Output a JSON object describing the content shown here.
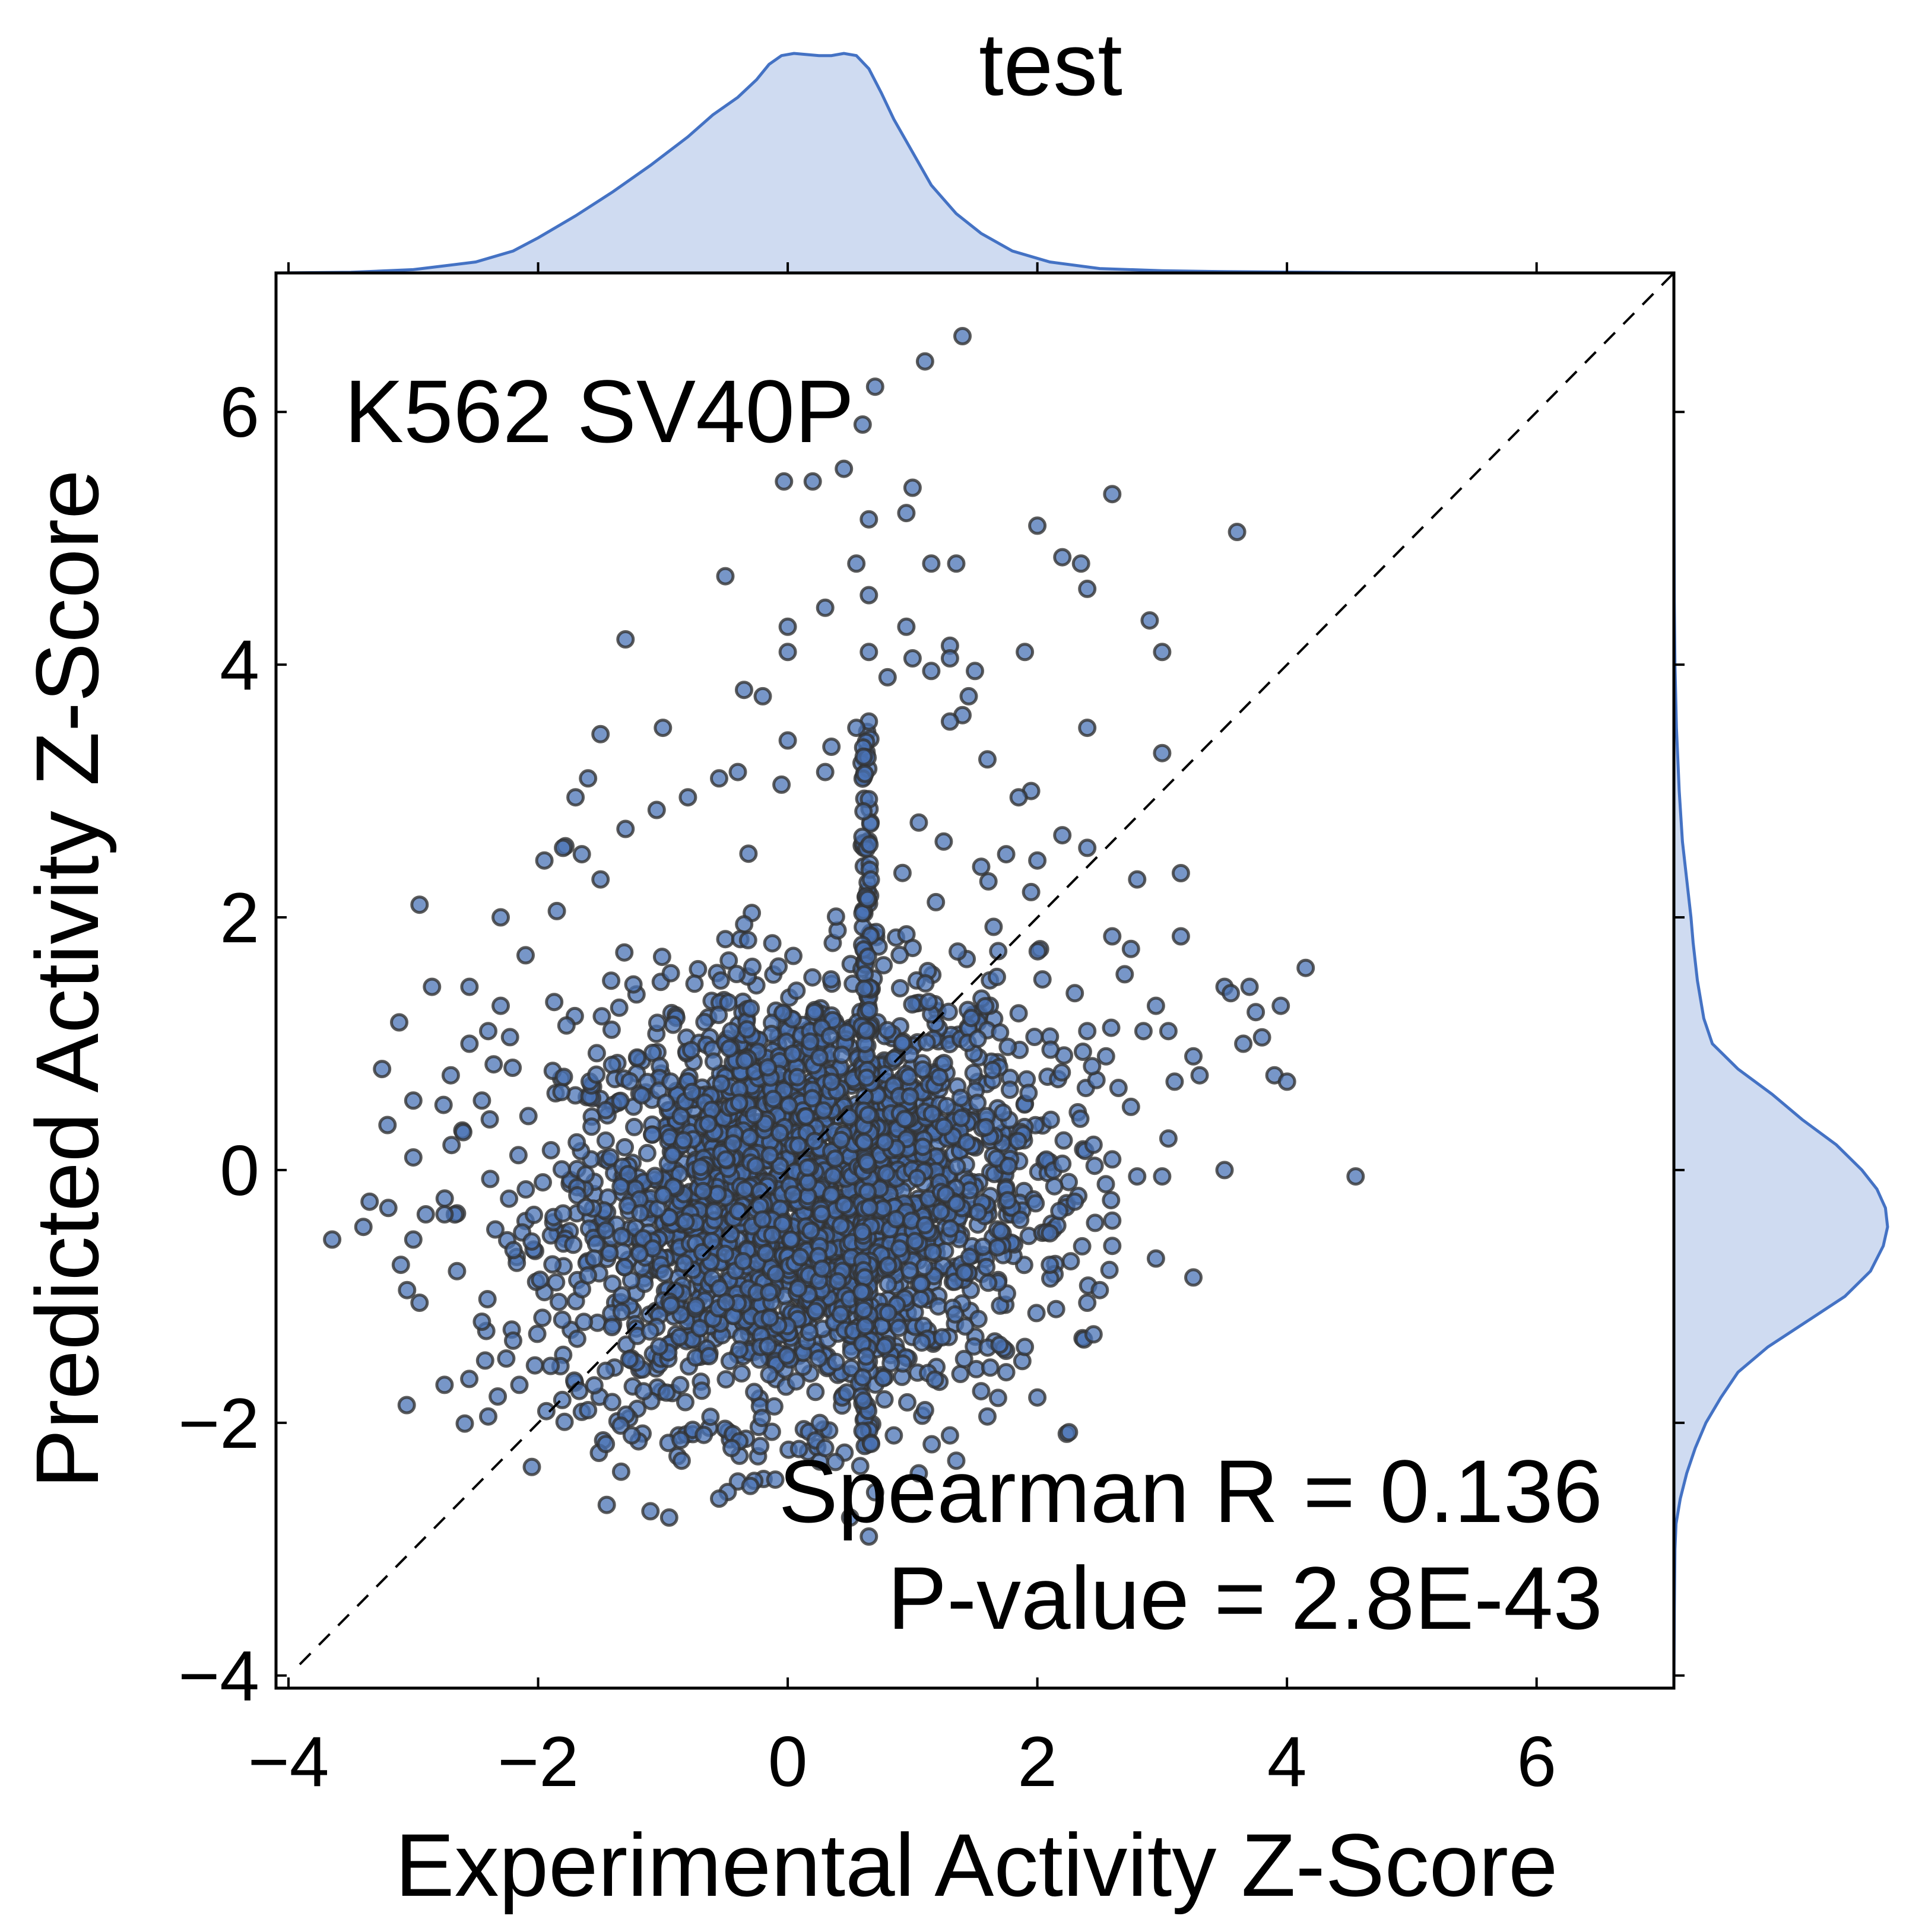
{
  "chart_data": {
    "type": "scatter",
    "title": "test",
    "xlabel": "Experimental Activity Z-Score",
    "ylabel": "Predicted Activity Z-Score",
    "annotation": "K562 SV40P",
    "stats": {
      "spearman_text": "Spearman R = 0.136",
      "pvalue_text": "P-value = 2.8E-43"
    },
    "xlim": [
      -4.1,
      7.1
    ],
    "ylim": [
      -4.1,
      7.1
    ],
    "xticks": [
      -4,
      -2,
      0,
      2,
      4,
      6
    ],
    "yticks": [
      -4,
      -2,
      0,
      2,
      4,
      6
    ],
    "xtick_labels": [
      "−4",
      "−2",
      "0",
      "2",
      "4",
      "6"
    ],
    "ytick_labels": [
      "−4",
      "−2",
      "0",
      "2",
      "4",
      "6"
    ],
    "grid": false,
    "legend": "none",
    "reference_line": {
      "from": [
        -4.1,
        -4.1
      ],
      "to": [
        7.1,
        7.1
      ],
      "style": "dashed"
    },
    "series": [
      {
        "marker_fill": "#4a73b5",
        "marker_edge": "#333333",
        "outliers": [
          [
            1.4,
            6.6
          ],
          [
            1.1,
            6.4
          ],
          [
            0.7,
            6.2
          ],
          [
            0.6,
            5.9
          ],
          [
            -0.03,
            5.45
          ],
          [
            0.2,
            5.45
          ],
          [
            0.45,
            5.55
          ],
          [
            1.0,
            5.4
          ],
          [
            0.95,
            5.2
          ],
          [
            0.65,
            5.15
          ],
          [
            2.6,
            5.35
          ],
          [
            2.0,
            5.1
          ],
          [
            3.6,
            5.05
          ],
          [
            2.2,
            4.85
          ],
          [
            2.35,
            4.8
          ],
          [
            2.4,
            4.6
          ],
          [
            1.35,
            4.8
          ],
          [
            1.15,
            4.8
          ],
          [
            0.55,
            4.8
          ],
          [
            -0.5,
            4.7
          ],
          [
            0.3,
            4.45
          ],
          [
            0.65,
            4.55
          ],
          [
            0.0,
            4.3
          ],
          [
            -1.3,
            4.2
          ],
          [
            0.95,
            4.3
          ],
          [
            2.9,
            4.35
          ],
          [
            3.0,
            4.1
          ],
          [
            1.3,
            4.15
          ],
          [
            1.9,
            4.1
          ],
          [
            0.0,
            4.1
          ],
          [
            0.65,
            4.1
          ],
          [
            1.0,
            4.05
          ],
          [
            1.3,
            4.05
          ],
          [
            1.5,
            3.95
          ],
          [
            1.15,
            3.95
          ],
          [
            -0.35,
            3.8
          ],
          [
            -0.2,
            3.75
          ],
          [
            0.8,
            3.9
          ],
          [
            -1.0,
            3.5
          ],
          [
            -1.5,
            3.45
          ],
          [
            2.4,
            3.5
          ],
          [
            1.4,
            3.6
          ],
          [
            1.3,
            3.55
          ],
          [
            1.45,
            3.75
          ],
          [
            3.0,
            3.3
          ],
          [
            1.6,
            3.25
          ],
          [
            1.95,
            3.0
          ],
          [
            1.85,
            2.95
          ],
          [
            -1.6,
            3.1
          ],
          [
            -1.7,
            2.95
          ],
          [
            -0.4,
            3.15
          ],
          [
            0.0,
            3.4
          ],
          [
            -0.05,
            3.05
          ],
          [
            0.35,
            3.35
          ],
          [
            0.65,
            3.55
          ],
          [
            0.55,
            3.5
          ],
          [
            0.3,
            3.15
          ],
          [
            3.15,
            2.35
          ],
          [
            2.8,
            2.3
          ],
          [
            -2.95,
            2.1
          ],
          [
            -2.3,
            2.0
          ],
          [
            -1.95,
            2.45
          ],
          [
            -1.8,
            2.55
          ],
          [
            -1.65,
            2.5
          ],
          [
            -2.1,
            1.7
          ],
          [
            -2.85,
            1.45
          ],
          [
            -2.55,
            1.45
          ],
          [
            2.2,
            2.65
          ],
          [
            2.4,
            2.55
          ],
          [
            2.0,
            2.45
          ],
          [
            1.75,
            2.5
          ],
          [
            3.5,
            1.45
          ],
          [
            3.55,
            1.4
          ],
          [
            3.7,
            1.45
          ],
          [
            3.95,
            1.3
          ],
          [
            4.15,
            1.6
          ],
          [
            3.75,
            1.25
          ],
          [
            3.8,
            1.05
          ],
          [
            3.65,
            1.0
          ],
          [
            3.9,
            0.75
          ],
          [
            4.0,
            0.7
          ],
          [
            3.25,
            0.9
          ],
          [
            3.3,
            0.75
          ],
          [
            3.1,
            0.7
          ],
          [
            2.95,
            1.3
          ],
          [
            3.05,
            1.1
          ],
          [
            2.85,
            1.1
          ],
          [
            2.7,
            1.55
          ],
          [
            2.75,
            1.75
          ],
          [
            3.15,
            1.85
          ],
          [
            2.6,
            1.85
          ],
          [
            3.5,
            0.0
          ],
          [
            4.55,
            -0.05
          ],
          [
            3.0,
            -0.05
          ],
          [
            2.8,
            -0.05
          ],
          [
            2.6,
            -0.4
          ],
          [
            2.6,
            -0.6
          ],
          [
            2.95,
            -0.7
          ],
          [
            3.25,
            -0.85
          ],
          [
            2.5,
            -0.95
          ],
          [
            2.4,
            -1.05
          ],
          [
            2.45,
            -1.3
          ],
          [
            2.1,
            -0.75
          ],
          [
            2.0,
            -1.8
          ],
          [
            1.6,
            -1.95
          ],
          [
            1.3,
            -2.1
          ],
          [
            1.35,
            -2.3
          ],
          [
            1.05,
            -2.4
          ],
          [
            0.7,
            -2.55
          ],
          [
            0.5,
            -2.75
          ],
          [
            0.65,
            -2.9
          ],
          [
            -0.1,
            -2.45
          ],
          [
            -0.3,
            -2.5
          ],
          [
            -0.55,
            -2.6
          ],
          [
            -0.95,
            -2.75
          ],
          [
            -1.1,
            -2.7
          ],
          [
            -1.45,
            -2.65
          ],
          [
            -2.05,
            -2.35
          ],
          [
            -2.4,
            -1.95
          ],
          [
            -2.15,
            -1.7
          ],
          [
            -2.75,
            -1.7
          ],
          [
            -2.95,
            -1.05
          ],
          [
            -3.05,
            -0.95
          ],
          [
            -3.1,
            -0.75
          ],
          [
            -3.2,
            -0.3
          ],
          [
            -3.35,
            -0.25
          ],
          [
            -3.4,
            -0.45
          ],
          [
            -3.65,
            -0.55
          ],
          [
            -3.0,
            -0.55
          ],
          [
            -2.9,
            -0.35
          ],
          [
            -3.0,
            0.1
          ],
          [
            -3.0,
            0.55
          ],
          [
            -3.25,
            0.8
          ],
          [
            -2.7,
            0.75
          ],
          [
            -2.55,
            1.0
          ],
          [
            -2.4,
            1.1
          ],
          [
            -2.3,
            1.3
          ],
          [
            -1.85,
            2.05
          ],
          [
            -1.5,
            2.3
          ],
          [
            -1.3,
            2.7
          ],
          [
            -1.05,
            2.85
          ],
          [
            -0.8,
            2.95
          ],
          [
            -0.55,
            3.1
          ],
          [
            1.05,
            2.75
          ],
          [
            1.25,
            2.6
          ],
          [
            1.55,
            2.4
          ],
          [
            1.95,
            2.2
          ],
          [
            2.3,
            1.4
          ],
          [
            2.4,
            1.1
          ],
          [
            2.55,
            0.9
          ],
          [
            2.65,
            0.65
          ],
          [
            2.75,
            0.5
          ],
          [
            3.05,
            0.25
          ],
          [
            2.2,
            0.05
          ],
          [
            2.45,
            0.2
          ],
          [
            2.3,
            -0.25
          ],
          [
            2.1,
            -0.5
          ],
          [
            2.15,
            -1.1
          ],
          [
            1.9,
            -1.4
          ],
          [
            1.75,
            -1.6
          ],
          [
            1.55,
            -1.75
          ],
          [
            1.1,
            -1.9
          ],
          [
            0.85,
            -2.1
          ],
          [
            0.3,
            -2.2
          ],
          [
            -0.45,
            -2.2
          ],
          [
            -0.85,
            -2.3
          ],
          [
            -1.25,
            -2.1
          ],
          [
            -1.6,
            -1.9
          ],
          [
            -1.9,
            -1.55
          ],
          [
            -2.2,
            -1.35
          ],
          [
            -2.45,
            -1.2
          ],
          [
            -2.65,
            -0.8
          ],
          [
            -2.75,
            -0.35
          ],
          [
            -2.6,
            0.3
          ],
          [
            -2.45,
            0.55
          ]
        ]
      }
    ],
    "density_x": {
      "x": [
        -4.1,
        -3.5,
        -3.0,
        -2.5,
        -2.2,
        -2.0,
        -1.7,
        -1.4,
        -1.1,
        -0.8,
        -0.6,
        -0.4,
        -0.25,
        -0.15,
        -0.05,
        0.05,
        0.15,
        0.25,
        0.35,
        0.45,
        0.55,
        0.65,
        0.75,
        0.85,
        1.0,
        1.15,
        1.35,
        1.55,
        1.8,
        2.1,
        2.5,
        3.0,
        3.5,
        4.0,
        4.5,
        5.0,
        6.0,
        7.1
      ],
      "y": [
        0.0,
        0.003,
        0.015,
        0.05,
        0.1,
        0.16,
        0.26,
        0.37,
        0.49,
        0.62,
        0.72,
        0.8,
        0.88,
        0.95,
        0.99,
        1.0,
        0.995,
        0.99,
        0.99,
        1.0,
        0.99,
        0.93,
        0.82,
        0.7,
        0.55,
        0.4,
        0.27,
        0.18,
        0.1,
        0.05,
        0.02,
        0.01,
        0.006,
        0.004,
        0.002,
        0.001,
        0.0,
        0.0
      ]
    },
    "density_y": {
      "y": [
        -4.1,
        -3.5,
        -3.0,
        -2.8,
        -2.6,
        -2.4,
        -2.2,
        -2.0,
        -1.8,
        -1.6,
        -1.4,
        -1.2,
        -1.0,
        -0.8,
        -0.6,
        -0.45,
        -0.3,
        -0.15,
        0.0,
        0.2,
        0.4,
        0.6,
        0.8,
        1.0,
        1.2,
        1.5,
        1.8,
        2.0,
        2.3,
        2.6,
        3.0,
        3.5,
        4.0,
        4.5,
        5.0,
        6.0,
        7.1
      ],
      "x": [
        0.0,
        0.002,
        0.005,
        0.01,
        0.03,
        0.06,
        0.1,
        0.15,
        0.22,
        0.3,
        0.44,
        0.62,
        0.8,
        0.92,
        0.98,
        1.0,
        0.99,
        0.95,
        0.88,
        0.76,
        0.6,
        0.46,
        0.3,
        0.18,
        0.14,
        0.11,
        0.09,
        0.08,
        0.06,
        0.04,
        0.025,
        0.012,
        0.005,
        0.002,
        0.001,
        0.0,
        0.0
      ]
    },
    "density_color": "#4472c4",
    "density_fill": "#cfdbf1"
  }
}
